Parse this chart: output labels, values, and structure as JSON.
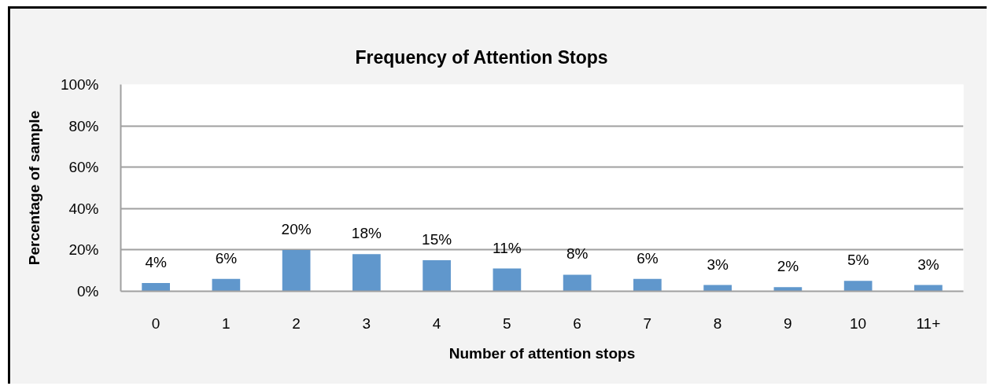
{
  "chart_data": {
    "type": "bar",
    "title": "Frequency of Attention Stops",
    "xlabel": "Number of attention stops",
    "ylabel": "Percentage of sample",
    "categories": [
      "0",
      "1",
      "2",
      "3",
      "4",
      "5",
      "6",
      "7",
      "8",
      "9",
      "10",
      "11+"
    ],
    "values": [
      4,
      6,
      20,
      18,
      15,
      11,
      8,
      6,
      3,
      2,
      5,
      3
    ],
    "value_labels": [
      "4%",
      "6%",
      "20%",
      "18%",
      "15%",
      "11%",
      "8%",
      "6%",
      "3%",
      "2%",
      "5%",
      "3%"
    ],
    "color": "#6097cc",
    "ylim": [
      0,
      100
    ],
    "yticks": [
      {
        "value": 0,
        "label": "0%"
      },
      {
        "value": 20,
        "label": "20%"
      },
      {
        "value": 40,
        "label": "40%"
      },
      {
        "value": 60,
        "label": "60%"
      },
      {
        "value": 80,
        "label": "80%"
      },
      {
        "value": 100,
        "label": "100%"
      }
    ],
    "grid": "y"
  }
}
